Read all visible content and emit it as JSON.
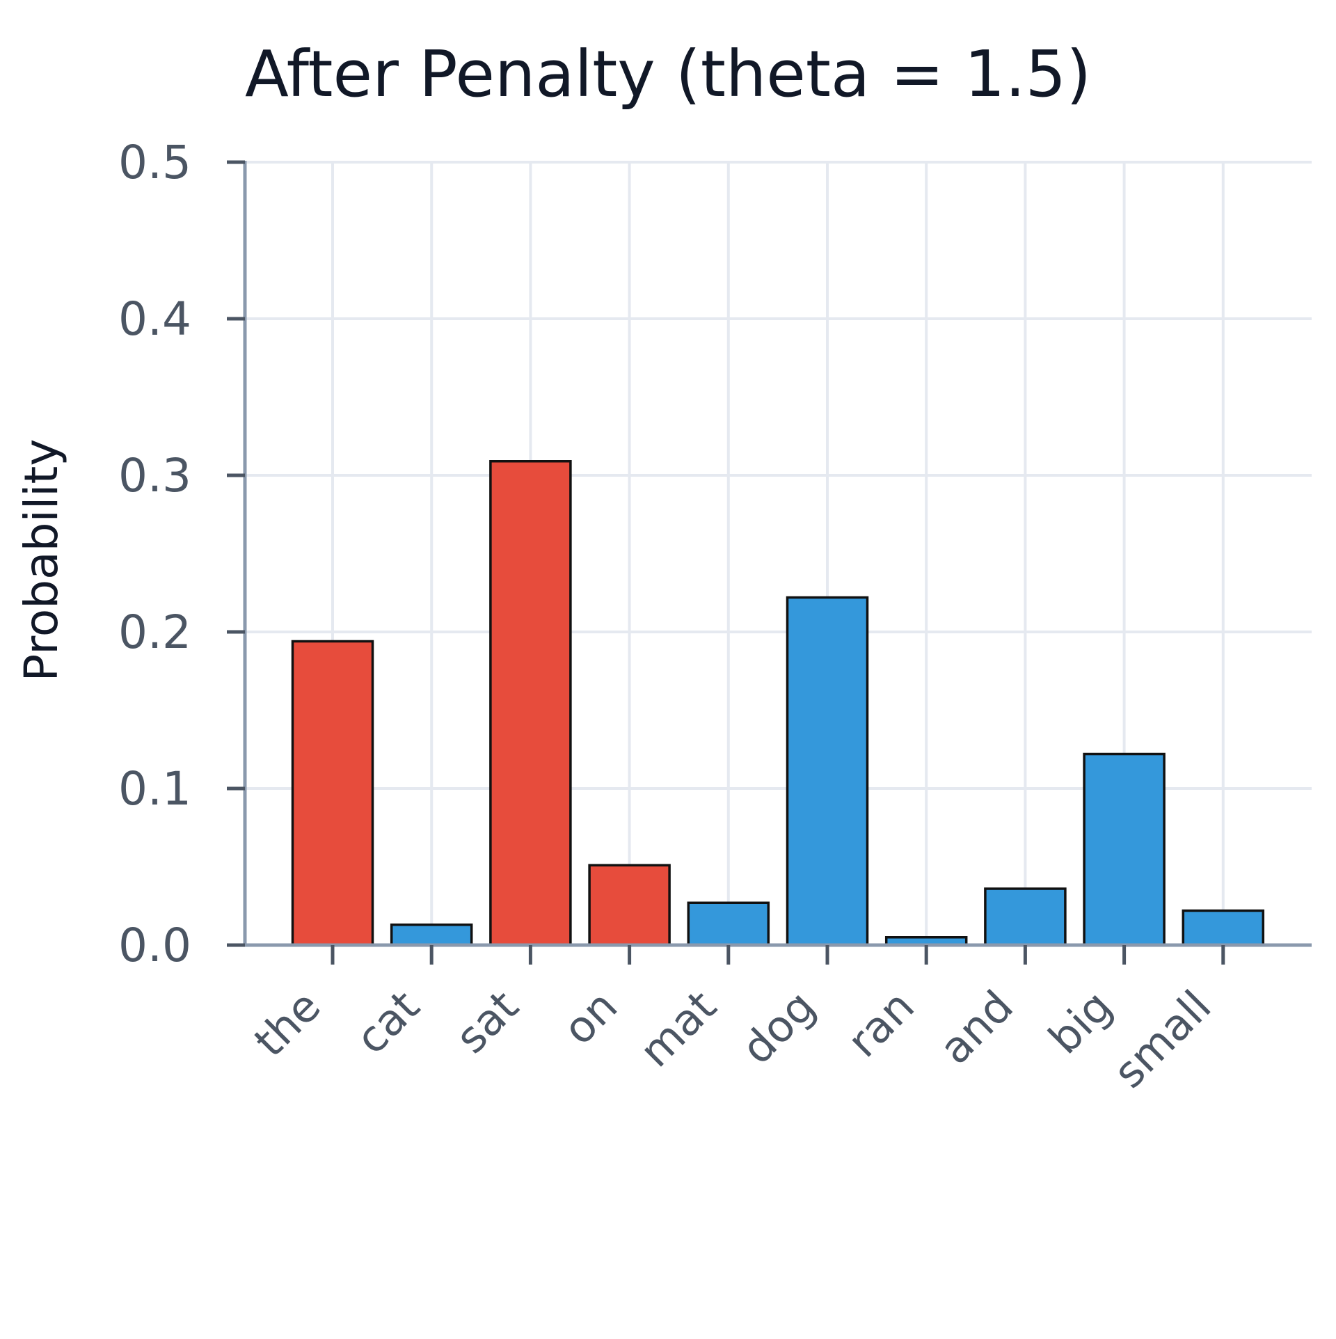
{
  "chart_data": {
    "type": "bar",
    "title": "After Penalty (theta = 1.5)",
    "xlabel": "",
    "ylabel": "Probability",
    "ylim": [
      0,
      0.5
    ],
    "yticks": [
      "0.0",
      "0.1",
      "0.2",
      "0.3",
      "0.4",
      "0.5"
    ],
    "grid": true,
    "categories": [
      "the",
      "cat",
      "sat",
      "on",
      "mat",
      "dog",
      "ran",
      "and",
      "big",
      "small"
    ],
    "values": [
      0.194,
      0.013,
      0.309,
      0.051,
      0.027,
      0.222,
      0.005,
      0.036,
      0.122,
      0.022
    ],
    "bar_colors": [
      "#e74c3c",
      "#3498db",
      "#e74c3c",
      "#e74c3c",
      "#3498db",
      "#3498db",
      "#3498db",
      "#3498db",
      "#3498db",
      "#3498db"
    ]
  }
}
